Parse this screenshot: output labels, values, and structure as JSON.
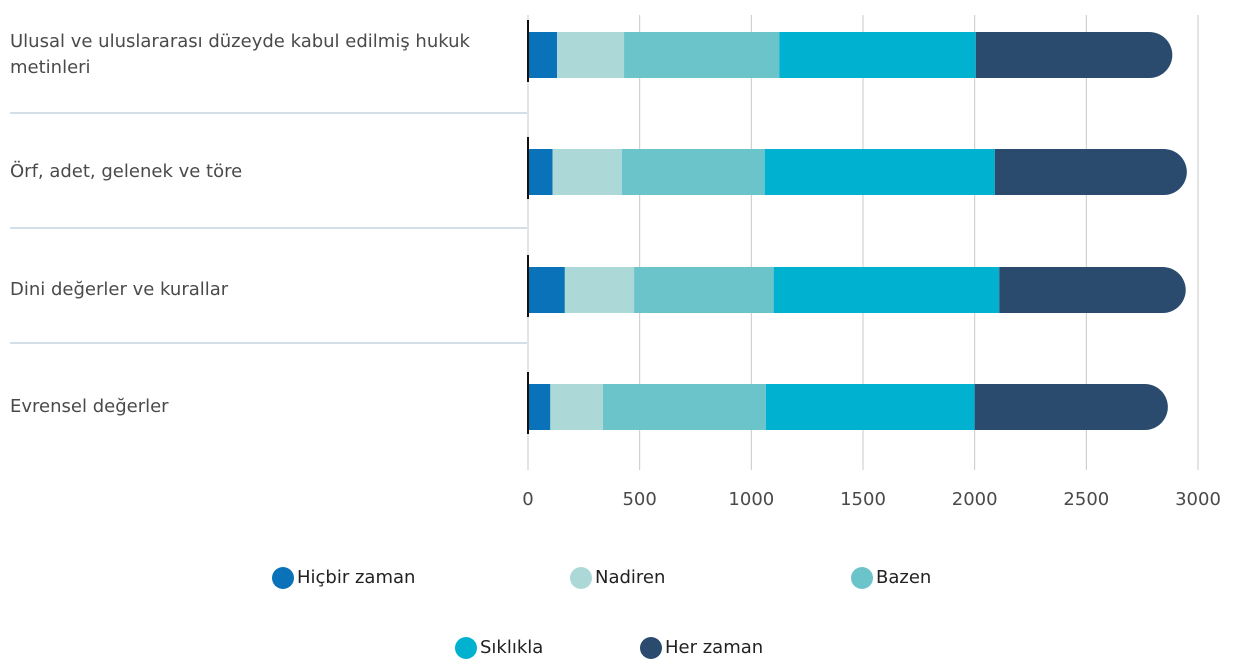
{
  "chart_data": {
    "type": "stacked_bar_horizontal",
    "categories": [
      "Ulusal ve uluslararası düzeyde kabul edilmiş hukuk metinleri",
      "Örf, adet, gelenek ve töre",
      "Dini değerler ve kurallar",
      "Evrensel değerler"
    ],
    "series": [
      {
        "name": "Hiçbir zaman",
        "color": "#0a72b8",
        "values": [
          130,
          110,
          165,
          100
        ]
      },
      {
        "name": "Nadiren",
        "color": "#acd9d8",
        "values": [
          300,
          310,
          310,
          235
        ]
      },
      {
        "name": "Bazen",
        "color": "#6cc4cb",
        "values": [
          695,
          640,
          625,
          730
        ]
      },
      {
        "name": "Sıklıkla",
        "color": "#00b2d0",
        "values": [
          880,
          1030,
          1010,
          935
        ]
      },
      {
        "name": "Her zaman",
        "color": "#2a4a6e",
        "values": [
          880,
          860,
          835,
          865
        ]
      }
    ],
    "xlim": [
      0,
      3000
    ],
    "xticks": [
      0,
      500,
      1000,
      1500,
      2000,
      2500,
      3000
    ],
    "grid": true,
    "legend": "bottom"
  }
}
